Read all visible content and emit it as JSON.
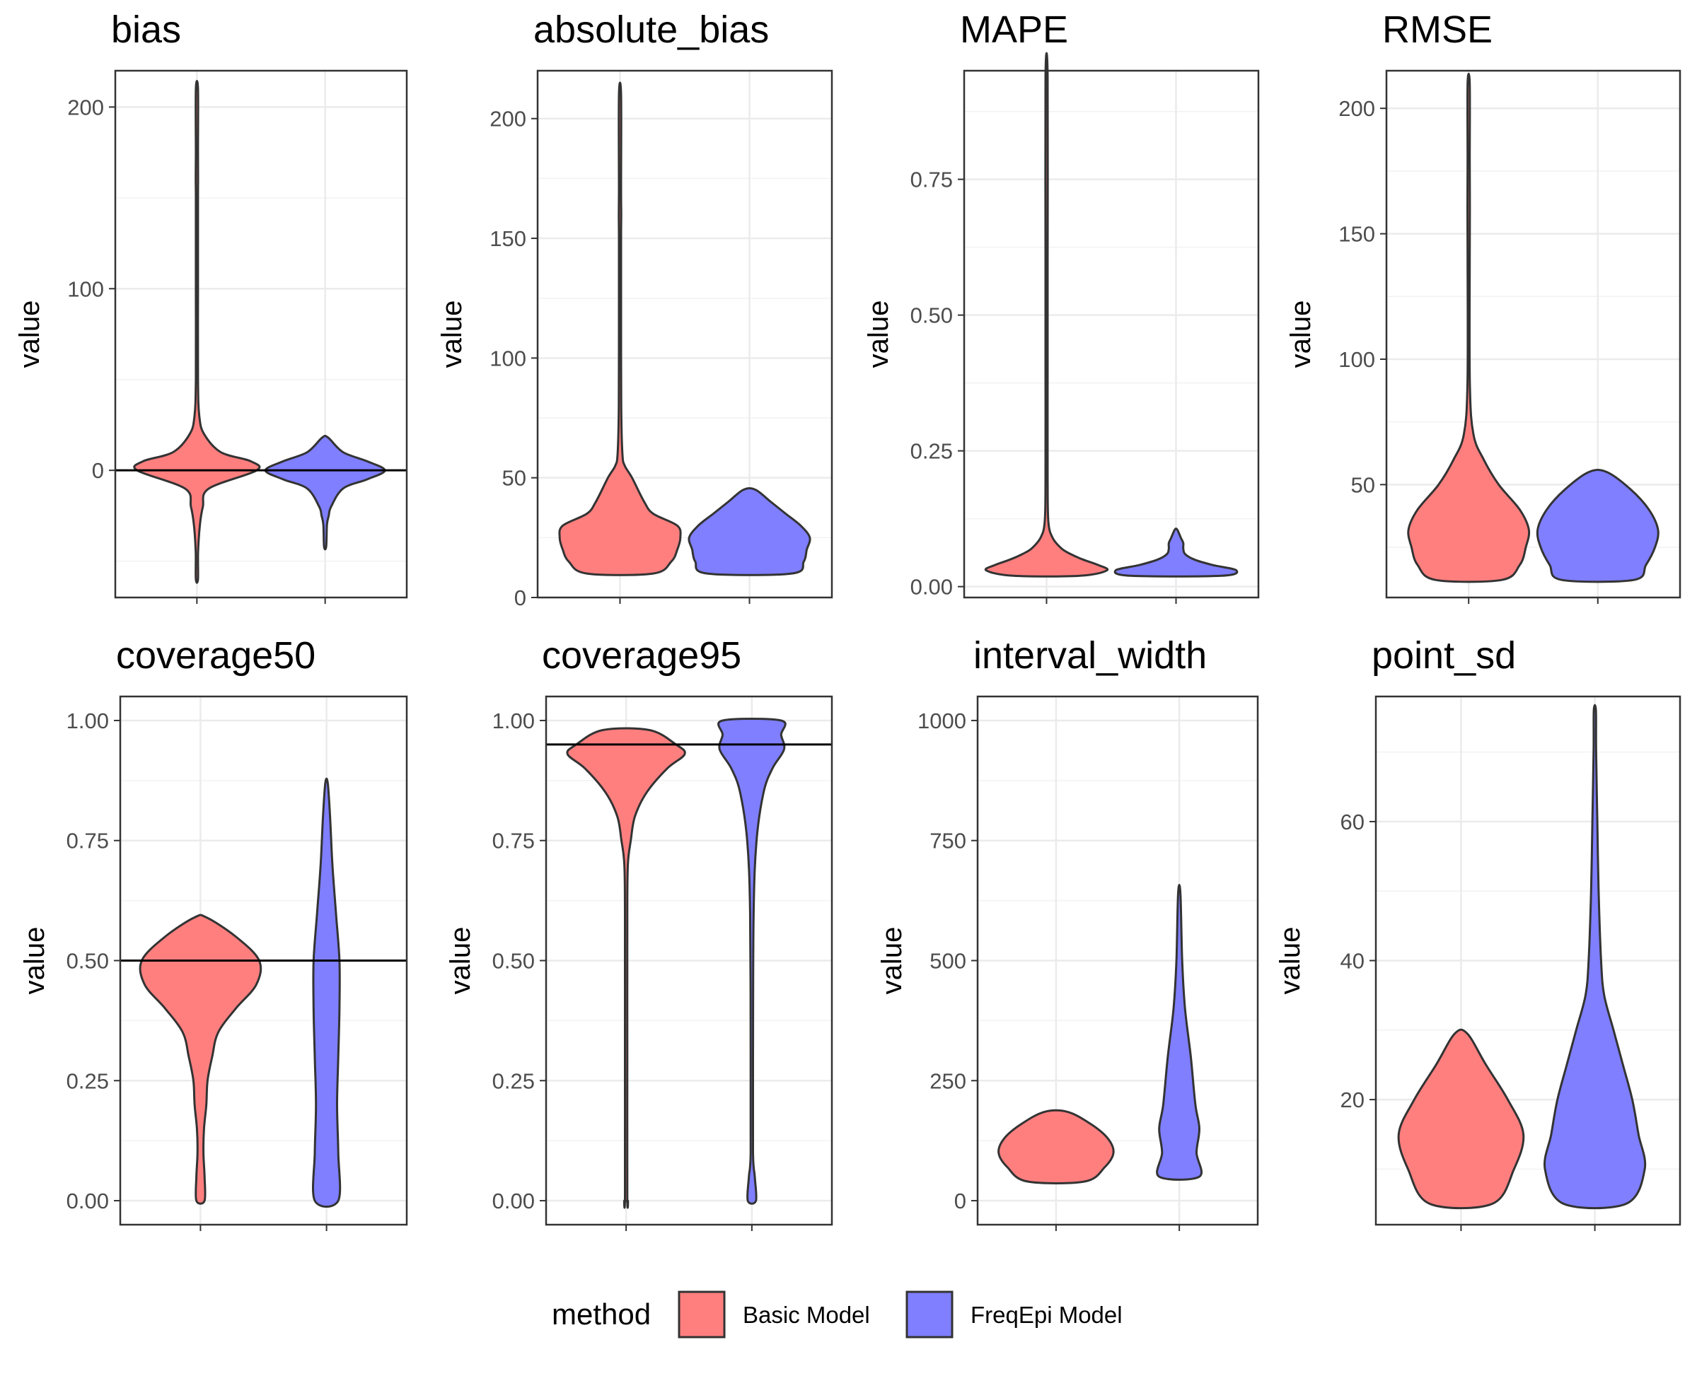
{
  "chart_data": [
    {
      "type": "violin",
      "title": "bias",
      "ylabel": "value",
      "ylim": [
        -70,
        220
      ],
      "yticks": [
        0,
        100,
        200
      ],
      "tick_labels": [
        "0",
        "100",
        "200"
      ],
      "ref_line": 0,
      "series": [
        {
          "name": "Basic Model",
          "violin": [
            [
              -60,
              0.01
            ],
            [
              -45,
              0.02
            ],
            [
              -30,
              0.05
            ],
            [
              -20,
              0.1
            ],
            [
              -10,
              0.2
            ],
            [
              0,
              1.0
            ],
            [
              5,
              0.9
            ],
            [
              10,
              0.4
            ],
            [
              20,
              0.12
            ],
            [
              30,
              0.04
            ],
            [
              50,
              0.01
            ],
            [
              100,
              0.005
            ],
            [
              150,
              0.005
            ],
            [
              160,
              0.02
            ],
            [
              175,
              0.005
            ],
            [
              210,
              0.002
            ]
          ]
        },
        {
          "name": "FreqEpi Model",
          "violin": [
            [
              -42,
              0.01
            ],
            [
              -30,
              0.03
            ],
            [
              -25,
              0.06
            ],
            [
              -20,
              0.1
            ],
            [
              -10,
              0.3
            ],
            [
              -5,
              0.7
            ],
            [
              0,
              1.0
            ],
            [
              5,
              0.7
            ],
            [
              10,
              0.3
            ],
            [
              18,
              0.05
            ]
          ]
        }
      ]
    },
    {
      "type": "violin",
      "title": "absolute_bias",
      "ylabel": "value",
      "ylim": [
        0,
        220
      ],
      "yticks": [
        0,
        50,
        100,
        150,
        200
      ],
      "tick_labels": [
        "0",
        "50",
        "100",
        "150",
        "200"
      ],
      "series": [
        {
          "name": "Basic Model",
          "violin": [
            [
              10,
              0.55
            ],
            [
              15,
              0.85
            ],
            [
              20,
              0.95
            ],
            [
              25,
              1.0
            ],
            [
              30,
              0.95
            ],
            [
              35,
              0.55
            ],
            [
              40,
              0.4
            ],
            [
              50,
              0.2
            ],
            [
              55,
              0.08
            ],
            [
              60,
              0.04
            ],
            [
              80,
              0.02
            ],
            [
              120,
              0.01
            ],
            [
              150,
              0.01
            ],
            [
              160,
              0.02
            ],
            [
              170,
              0.01
            ],
            [
              210,
              0.005
            ]
          ]
        },
        {
          "name": "FreqEpi Model",
          "violin": [
            [
              10,
              0.7
            ],
            [
              15,
              0.9
            ],
            [
              20,
              0.95
            ],
            [
              25,
              1.0
            ],
            [
              30,
              0.85
            ],
            [
              35,
              0.6
            ],
            [
              40,
              0.35
            ],
            [
              45,
              0.1
            ]
          ]
        }
      ]
    },
    {
      "type": "violin",
      "title": "MAPE",
      "ylabel": "value",
      "ylim": [
        -0.02,
        0.95
      ],
      "yticks": [
        0,
        0.25,
        0.5,
        0.75
      ],
      "tick_labels": [
        "0.00",
        "0.25",
        "0.50",
        "0.75"
      ],
      "series": [
        {
          "name": "Basic Model",
          "violin": [
            [
              0.02,
              0.55
            ],
            [
              0.03,
              1.0
            ],
            [
              0.04,
              0.85
            ],
            [
              0.05,
              0.6
            ],
            [
              0.06,
              0.4
            ],
            [
              0.07,
              0.25
            ],
            [
              0.09,
              0.1
            ],
            [
              0.12,
              0.03
            ],
            [
              0.2,
              0.01
            ],
            [
              0.4,
              0.01
            ],
            [
              0.6,
              0.005
            ],
            [
              0.94,
              0.003
            ]
          ]
        },
        {
          "name": "FreqEpi Model",
          "violin": [
            [
              0.02,
              0.75
            ],
            [
              0.03,
              1.0
            ],
            [
              0.04,
              0.6
            ],
            [
              0.05,
              0.3
            ],
            [
              0.06,
              0.15
            ],
            [
              0.07,
              0.12
            ],
            [
              0.08,
              0.12
            ],
            [
              0.09,
              0.08
            ],
            [
              0.105,
              0.02
            ]
          ]
        }
      ]
    },
    {
      "type": "violin",
      "title": "RMSE",
      "ylabel": "value",
      "ylim": [
        5,
        215
      ],
      "yticks": [
        50,
        100,
        150,
        200
      ],
      "tick_labels": [
        "50",
        "100",
        "150",
        "200"
      ],
      "series": [
        {
          "name": "Basic Model",
          "violin": [
            [
              12,
              0.55
            ],
            [
              18,
              0.85
            ],
            [
              25,
              0.95
            ],
            [
              32,
              1.0
            ],
            [
              40,
              0.85
            ],
            [
              50,
              0.5
            ],
            [
              60,
              0.25
            ],
            [
              70,
              0.08
            ],
            [
              90,
              0.02
            ],
            [
              140,
              0.01
            ],
            [
              160,
              0.02
            ],
            [
              180,
              0.005
            ],
            [
              210,
              0.003
            ]
          ]
        },
        {
          "name": "FreqEpi Model",
          "violin": [
            [
              12,
              0.6
            ],
            [
              18,
              0.8
            ],
            [
              25,
              0.95
            ],
            [
              32,
              1.0
            ],
            [
              40,
              0.85
            ],
            [
              48,
              0.55
            ],
            [
              55,
              0.15
            ]
          ]
        }
      ]
    },
    {
      "type": "violin",
      "title": "coverage50",
      "ylabel": "value",
      "ylim": [
        -0.05,
        1.05
      ],
      "yticks": [
        0,
        0.25,
        0.5,
        0.75,
        1
      ],
      "tick_labels": [
        "0.00",
        "0.25",
        "0.50",
        "0.75",
        "1.00"
      ],
      "ref_line": 0.5,
      "series": [
        {
          "name": "Basic Model",
          "violin": [
            [
              0,
              0.07
            ],
            [
              0.05,
              0.07
            ],
            [
              0.1,
              0.05
            ],
            [
              0.15,
              0.06
            ],
            [
              0.2,
              0.1
            ],
            [
              0.25,
              0.12
            ],
            [
              0.3,
              0.2
            ],
            [
              0.35,
              0.3
            ],
            [
              0.4,
              0.6
            ],
            [
              0.45,
              0.95
            ],
            [
              0.5,
              1.0
            ],
            [
              0.55,
              0.6
            ],
            [
              0.59,
              0.1
            ]
          ]
        },
        {
          "name": "FreqEpi Model",
          "violin": [
            [
              0,
              0.2
            ],
            [
              0.1,
              0.2
            ],
            [
              0.2,
              0.18
            ],
            [
              0.3,
              0.2
            ],
            [
              0.4,
              0.22
            ],
            [
              0.5,
              0.22
            ],
            [
              0.6,
              0.16
            ],
            [
              0.7,
              0.1
            ],
            [
              0.8,
              0.06
            ],
            [
              0.87,
              0.02
            ]
          ]
        }
      ]
    },
    {
      "type": "violin",
      "title": "coverage95",
      "ylabel": "value",
      "ylim": [
        -0.05,
        1.05
      ],
      "yticks": [
        0,
        0.25,
        0.5,
        0.75,
        1
      ],
      "tick_labels": [
        "0.00",
        "0.25",
        "0.50",
        "0.75",
        "1.00"
      ],
      "ref_line": 0.95,
      "series": [
        {
          "name": "Basic Model",
          "violin": [
            [
              0,
              0.03
            ],
            [
              0.01,
              0.02
            ],
            [
              0.3,
              0.02
            ],
            [
              0.6,
              0.02
            ],
            [
              0.7,
              0.03
            ],
            [
              0.75,
              0.08
            ],
            [
              0.8,
              0.15
            ],
            [
              0.85,
              0.35
            ],
            [
              0.9,
              0.7
            ],
            [
              0.93,
              1.0
            ],
            [
              0.95,
              0.85
            ],
            [
              0.98,
              0.4
            ]
          ]
        },
        {
          "name": "FreqEpi Model",
          "violin": [
            [
              0,
              0.07
            ],
            [
              0.05,
              0.05
            ],
            [
              0.1,
              0.02
            ],
            [
              0.3,
              0.02
            ],
            [
              0.6,
              0.03
            ],
            [
              0.75,
              0.08
            ],
            [
              0.85,
              0.2
            ],
            [
              0.9,
              0.35
            ],
            [
              0.94,
              0.55
            ],
            [
              0.97,
              0.5
            ],
            [
              1.0,
              0.5
            ]
          ]
        }
      ]
    },
    {
      "type": "violin",
      "title": "interval_width",
      "ylabel": "value",
      "ylim": [
        -50,
        1050
      ],
      "yticks": [
        0,
        250,
        500,
        750,
        1000
      ],
      "tick_labels": [
        "0",
        "250",
        "500",
        "750",
        "1000"
      ],
      "series": [
        {
          "name": "Basic Model",
          "violin": [
            [
              40,
              0.5
            ],
            [
              70,
              0.85
            ],
            [
              100,
              1.0
            ],
            [
              130,
              0.9
            ],
            [
              160,
              0.6
            ],
            [
              185,
              0.2
            ]
          ]
        },
        {
          "name": "FreqEpi Model",
          "violin": [
            [
              50,
              0.35
            ],
            [
              100,
              0.3
            ],
            [
              150,
              0.35
            ],
            [
              200,
              0.28
            ],
            [
              300,
              0.2
            ],
            [
              400,
              0.1
            ],
            [
              500,
              0.05
            ],
            [
              640,
              0.02
            ]
          ]
        }
      ]
    },
    {
      "type": "violin",
      "title": "point_sd",
      "ylabel": "value",
      "ylim": [
        2,
        78
      ],
      "yticks": [
        20,
        40,
        60
      ],
      "tick_labels": [
        "20",
        "40",
        "60"
      ],
      "series": [
        {
          "name": "Basic Model",
          "violin": [
            [
              5,
              0.5
            ],
            [
              10,
              0.85
            ],
            [
              15,
              1.0
            ],
            [
              20,
              0.75
            ],
            [
              25,
              0.4
            ],
            [
              29.5,
              0.1
            ]
          ]
        },
        {
          "name": "FreqEpi Model",
          "violin": [
            [
              5,
              0.5
            ],
            [
              10,
              0.8
            ],
            [
              15,
              0.7
            ],
            [
              20,
              0.6
            ],
            [
              25,
              0.45
            ],
            [
              30,
              0.3
            ],
            [
              35,
              0.15
            ],
            [
              40,
              0.1
            ],
            [
              50,
              0.06
            ],
            [
              60,
              0.04
            ],
            [
              70,
              0.02
            ],
            [
              76,
              0.01
            ]
          ]
        }
      ]
    }
  ],
  "categories": [
    "Basic Model",
    "FreqEpi Model"
  ],
  "colors": {
    "Basic Model": "#FF7F7F",
    "FreqEpi Model": "#7F7FFF",
    "outline": "#333333",
    "ref_line": "#000000"
  },
  "legend": {
    "title": "method",
    "placement": "bottom",
    "items": [
      "Basic Model",
      "FreqEpi Model"
    ]
  }
}
